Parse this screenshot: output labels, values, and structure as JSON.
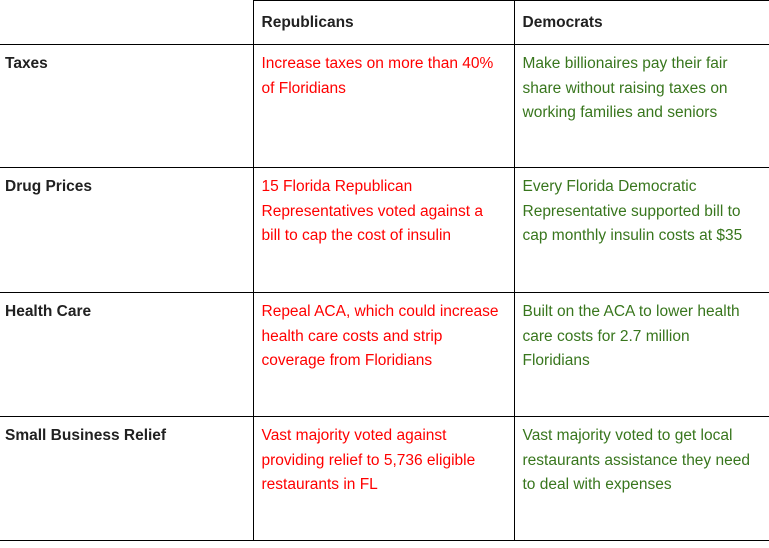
{
  "table": {
    "columns": [
      "",
      "Republicans",
      "Democrats"
    ],
    "rows": [
      {
        "label": "Taxes",
        "republicans": "Increase taxes on more than 40% of Floridians",
        "democrats": "Make billionaires pay their fair share without raising taxes on working families and seniors"
      },
      {
        "label": "Drug Prices",
        "republicans": "15 Florida Republican Representatives voted against a bill to cap the cost of insulin",
        "democrats": "Every Florida Democratic Representative supported bill to cap monthly insulin costs at $35"
      },
      {
        "label": "Health Care",
        "republicans": "Repeal ACA, which could increase health care costs and strip coverage from Floridians",
        "democrats": "Built on the ACA to lower health care costs for 2.7 million Floridians"
      },
      {
        "label": "Small Business Relief",
        "republicans": "Vast majority voted against providing relief to 5,736 eligible restaurants in FL",
        "democrats": "Vast majority voted to get local restaurants assistance they need to deal with expenses"
      }
    ]
  },
  "colors": {
    "republicans_text": "#ff0000",
    "democrats_text": "#38761d",
    "label_text": "#212121",
    "border_color": "#000000",
    "page_bg": "#ffffff"
  }
}
